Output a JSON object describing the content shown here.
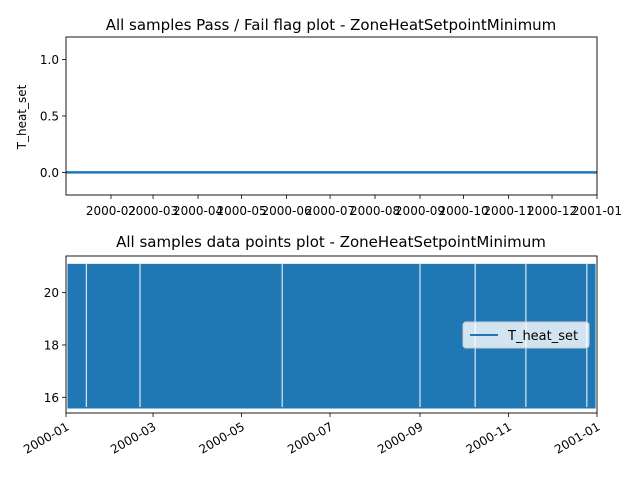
{
  "colors": {
    "series": "#1f77b4",
    "axes": "#000000",
    "background": "#ffffff",
    "legend_border": "#cccccc"
  },
  "chart_data": [
    {
      "type": "line",
      "title": "All samples Pass / Fail flag plot - ZoneHeatSetpointMinimum",
      "xlabel": "",
      "ylabel": "T_heat_set",
      "x_range": [
        "2000-01-01",
        "2001-01-01"
      ],
      "ylim": [
        -0.2,
        1.2
      ],
      "y_ticks": [
        0.0,
        0.5,
        1.0
      ],
      "y_tick_labels": [
        "0.0",
        "0.5",
        "1.0"
      ],
      "x_ticks": [
        "2000-02-01",
        "2000-03-01",
        "2000-04-01",
        "2000-05-01",
        "2000-06-01",
        "2000-07-01",
        "2000-08-01",
        "2000-09-01",
        "2000-10-01",
        "2000-11-01",
        "2000-12-01",
        "2001-01-01"
      ],
      "x_tick_labels": [
        "2000-02",
        "2000-03",
        "2000-04",
        "2000-05",
        "2000-06",
        "2000-07",
        "2000-08",
        "2000-09",
        "2000-10",
        "2000-11",
        "2000-12",
        "2001-01"
      ],
      "grid": false,
      "series": [
        {
          "x": [
            "2000-01-01",
            "2001-01-01"
          ],
          "values": [
            0,
            0
          ]
        }
      ]
    },
    {
      "type": "area",
      "title": "All samples data points plot - ZoneHeatSetpointMinimum",
      "xlabel": "",
      "ylabel": "",
      "x_range": [
        "2000-01-01",
        "2001-01-01"
      ],
      "ylim": [
        15.4,
        21.4
      ],
      "y_ticks": [
        16,
        18,
        20
      ],
      "y_tick_labels": [
        "16",
        "18",
        "20"
      ],
      "x_ticks": [
        "2000-01-01",
        "2000-03-01",
        "2000-05-01",
        "2000-07-01",
        "2000-09-01",
        "2000-11-01",
        "2001-01-01"
      ],
      "x_tick_labels": [
        "2000-01",
        "2000-03",
        "2000-05",
        "2000-07",
        "2000-09",
        "2000-11",
        "2001-01"
      ],
      "grid": false,
      "legend": {
        "placement": "center-right",
        "entries": [
          "T_heat_set"
        ]
      },
      "series": [
        {
          "name": "T_heat_set",
          "min": 15.6,
          "max": 21.1,
          "pattern": "oscillates between min and max",
          "gaps": [
            "2000-01-15",
            "2000-02-21",
            "2000-05-29",
            "2000-09-01",
            "2000-10-09",
            "2000-11-13",
            "2000-12-25"
          ]
        }
      ]
    }
  ]
}
